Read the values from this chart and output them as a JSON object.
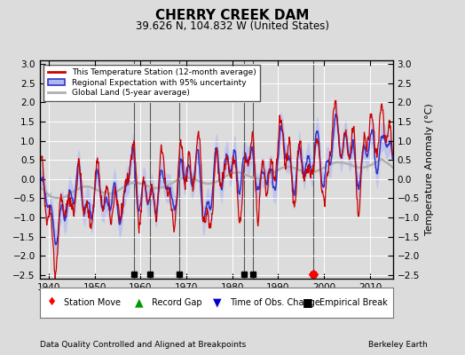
{
  "title": "CHERRY CREEK DAM",
  "subtitle": "39.626 N, 104.832 W (United States)",
  "ylabel": "Temperature Anomaly (°C)",
  "xlabel_note": "Data Quality Controlled and Aligned at Breakpoints",
  "credit": "Berkeley Earth",
  "xlim": [
    1938,
    2015
  ],
  "ylim": [
    -2.6,
    3.1
  ],
  "yticks": [
    -2.5,
    -2,
    -1.5,
    -1,
    -0.5,
    0,
    0.5,
    1,
    1.5,
    2,
    2.5,
    3
  ],
  "xticks": [
    1940,
    1950,
    1960,
    1970,
    1980,
    1990,
    2000,
    2010
  ],
  "bg_color": "#dcdcdc",
  "plot_bg_color": "#dcdcdc",
  "grid_color": "#ffffff",
  "station_moves": [
    1997.7
  ],
  "record_gaps": [],
  "obs_changes": [],
  "empirical_breaks": [
    1958.5,
    1962.0,
    1968.5,
    1982.5,
    1984.5,
    1997.7
  ],
  "seed": 42
}
